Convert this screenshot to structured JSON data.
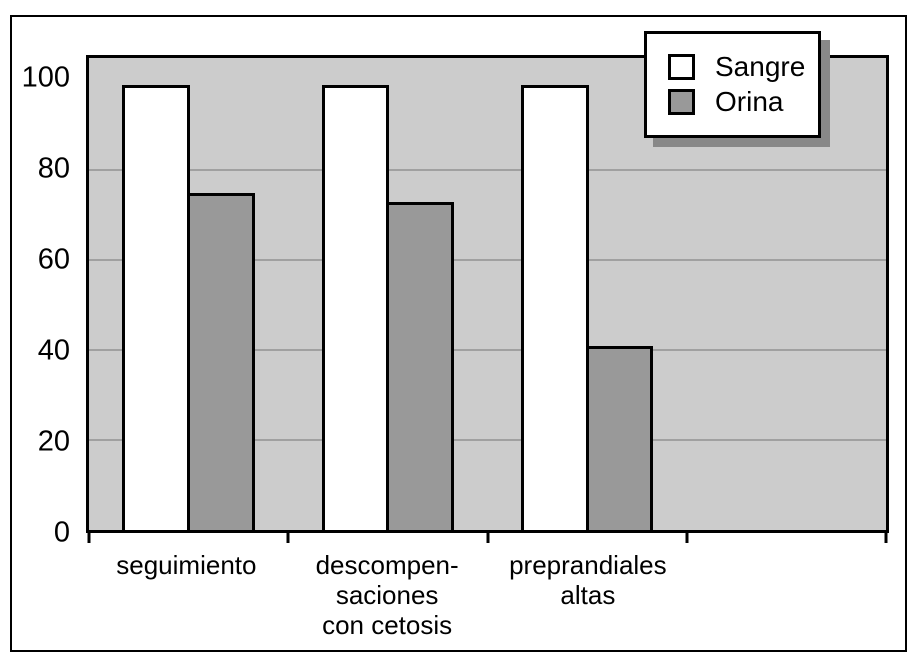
{
  "figure": {
    "background": "#ffffff",
    "border_color": "#000000"
  },
  "chart_data": {
    "type": "bar",
    "title": "",
    "xlabel": "",
    "ylabel": "",
    "categories": [
      "seguimiento",
      "descompen-\nsaciones\ncon cetosis",
      "preprandiales\naltas"
    ],
    "series": [
      {
        "name": "Sangre",
        "color": "#ffffff",
        "values": [
          99,
          99,
          99
        ]
      },
      {
        "name": "Orina",
        "color": "#999999",
        "values": [
          75,
          73,
          41
        ]
      }
    ],
    "ylim": [
      0,
      105
    ],
    "yticks": [
      0,
      20,
      40,
      60,
      80,
      100
    ],
    "gridlines": [
      20,
      40,
      60,
      80
    ],
    "grid": "horizontal",
    "num_slots": 4,
    "legend_position": "top-right",
    "plot_background": "#cccccc",
    "gridline_color": "#a0a0a0",
    "bar_border_color": "#000000",
    "legend_shadow_color": "#888888"
  }
}
